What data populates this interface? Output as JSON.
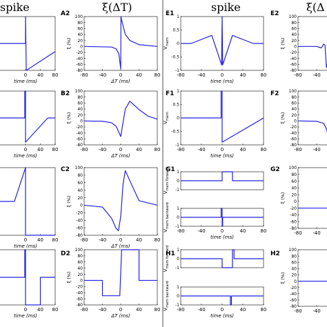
{
  "header": {
    "col1": "spike",
    "col2": "ξ(ΔT)",
    "col3": "spike",
    "col4": "ξ(Δ"
  },
  "time_label": "time (ms)",
  "dt_label": "ΔT (ms)",
  "dt_label_clipped": "Δ",
  "xi_label": "ξ (%)",
  "vmem_label": "V",
  "vmem_sub": "mem",
  "vmem_forward_sub": "mem forward",
  "vmem_backward_sub": "mem backward",
  "series_color": "#2020e0",
  "chart_data": [
    {
      "panel": "A1",
      "type": "line",
      "xlabel": "time (ms)",
      "xlim": [
        -80,
        80
      ],
      "xticks": [
        0,
        40,
        80
      ],
      "x": [
        -80,
        0,
        0,
        2,
        80
      ],
      "y": [
        0,
        0,
        1,
        -1,
        -0.3
      ]
    },
    {
      "panel": "A2",
      "type": "line",
      "title": "ξ(ΔT)",
      "xlabel": "ΔT (ms)",
      "ylabel": "ξ (%)",
      "xlim": [
        -80,
        80
      ],
      "ylim": [
        -80,
        100
      ],
      "xticks": [
        -80,
        -40,
        0,
        40,
        80
      ],
      "yticks": [
        -80,
        -60,
        -40,
        -20,
        0,
        20,
        40,
        60,
        80,
        100
      ],
      "x": [
        -80,
        -20,
        -10,
        -4,
        0,
        0.5,
        2,
        10,
        20,
        40,
        80
      ],
      "y": [
        0,
        -2,
        -8,
        -25,
        -75,
        100,
        88,
        40,
        20,
        6,
        0
      ]
    },
    {
      "panel": "B1",
      "type": "line",
      "xlabel": "time (ms)",
      "xlim": [
        -80,
        80
      ],
      "xticks": [
        0,
        40,
        80
      ],
      "x": [
        -80,
        -2,
        -2,
        0,
        0,
        60,
        80
      ],
      "y": [
        0,
        0,
        1,
        1,
        -0.9,
        0,
        0
      ]
    },
    {
      "panel": "B2",
      "type": "line",
      "xlabel": "ΔT (ms)",
      "ylabel": "ξ (%)",
      "xlim": [
        -80,
        80
      ],
      "ylim": [
        -80,
        100
      ],
      "xticks": [
        -80,
        -40,
        0,
        40,
        80
      ],
      "yticks": [
        -80,
        -60,
        -40,
        -20,
        0,
        20,
        40,
        60,
        80,
        100
      ],
      "x": [
        -80,
        -40,
        -20,
        -10,
        0,
        10,
        20,
        40,
        60,
        80
      ],
      "y": [
        0,
        -1,
        -6,
        -18,
        -52,
        40,
        66,
        38,
        16,
        6
      ]
    },
    {
      "panel": "C1",
      "type": "line",
      "xlabel": "time (ms)",
      "xlim": [
        -80,
        80
      ],
      "xticks": [
        0,
        40,
        80
      ],
      "x": [
        -80,
        -30,
        0,
        0,
        80
      ],
      "y": [
        0,
        0,
        1,
        -1,
        -1
      ]
    },
    {
      "panel": "C2",
      "type": "line",
      "xlabel": "ΔT (ms)",
      "ylabel": "ξ (%)",
      "xlim": [
        -80,
        80
      ],
      "ylim": [
        -80,
        100
      ],
      "xticks": [
        -80,
        -40,
        0,
        40,
        80
      ],
      "yticks": [
        -80,
        -60,
        -40,
        -20,
        0,
        20,
        40,
        60,
        80,
        100
      ],
      "x": [
        -80,
        -40,
        -20,
        -10,
        -5,
        0,
        5,
        10,
        20,
        40,
        80
      ],
      "y": [
        0,
        -5,
        -35,
        -62,
        -68,
        -30,
        55,
        92,
        65,
        12,
        0
      ]
    },
    {
      "panel": "D1",
      "type": "line",
      "xlabel": "time (ms)",
      "xlim": [
        -80,
        80
      ],
      "xticks": [
        0,
        40,
        80
      ],
      "x": [
        -80,
        -2,
        -2,
        0,
        0,
        40,
        40,
        80
      ],
      "y": [
        0,
        0,
        1,
        1,
        -1,
        -1,
        0,
        0
      ]
    },
    {
      "panel": "D2",
      "type": "line",
      "xlabel": "ΔT (ms)",
      "ylabel": "ξ (%)",
      "xlim": [
        -80,
        80
      ],
      "ylim": [
        -80,
        100
      ],
      "xticks": [
        -80,
        -40,
        0,
        40,
        80
      ],
      "yticks": [
        -80,
        -60,
        -40,
        -20,
        0,
        20,
        40,
        60,
        80,
        100
      ],
      "x": [
        -80,
        -40,
        -40,
        -2,
        2,
        40,
        40,
        80
      ],
      "y": [
        0,
        0,
        -50,
        -50,
        100,
        100,
        0,
        0
      ]
    },
    {
      "panel": "E1",
      "type": "line",
      "title": "spike",
      "xlabel": "time (ms)",
      "ylabel": "V_mem",
      "xlim": [
        -80,
        80
      ],
      "ylim": [
        -1,
        1
      ],
      "xticks": [
        -80,
        -40,
        0,
        40,
        80
      ],
      "yticks": [
        -1,
        -0.5,
        0,
        0.5,
        1
      ],
      "x": [
        -80,
        -60,
        -20,
        -1,
        0,
        1,
        20,
        60,
        80
      ],
      "y": [
        0,
        0,
        0.3,
        -0.8,
        1,
        -0.8,
        0.3,
        0,
        0
      ]
    },
    {
      "panel": "E2",
      "type": "line",
      "xlabel": "Δ",
      "ylabel": "ξ (%)",
      "xlim": [
        -80,
        80
      ],
      "ylim": [
        -80,
        100
      ],
      "xticks": [
        -80,
        -40
      ],
      "yticks": [
        -80,
        -60,
        -40,
        -20,
        0,
        20,
        40,
        60,
        80,
        100
      ],
      "x": [
        -80,
        -40,
        -30,
        -25,
        -22,
        -19,
        -15,
        -12
      ],
      "y": [
        0,
        0,
        -5,
        8,
        4,
        -70,
        -45,
        -10
      ]
    },
    {
      "panel": "F1",
      "type": "line",
      "xlabel": "time (ms)",
      "ylabel": "V_mem",
      "xlim": [
        -80,
        80
      ],
      "ylim": [
        -1,
        1
      ],
      "xticks": [
        -80,
        -40,
        0,
        40,
        80
      ],
      "yticks": [
        -1,
        -0.5,
        0,
        0.5,
        1
      ],
      "x": [
        -80,
        -2,
        -2,
        0,
        0,
        80
      ],
      "y": [
        0,
        0,
        1,
        1,
        -0.9,
        0
      ]
    },
    {
      "panel": "F2",
      "type": "line",
      "xlabel": "Δ",
      "ylabel": "ξ (%)",
      "xlim": [
        -80,
        80
      ],
      "ylim": [
        -80,
        100
      ],
      "xticks": [
        -80,
        -40
      ],
      "yticks": [
        -80,
        -60,
        -40,
        -20,
        0,
        20,
        40,
        60,
        80,
        100
      ],
      "x": [
        -80,
        -40,
        -25,
        -18,
        -14,
        -12
      ],
      "y": [
        0,
        -1,
        -8,
        -30,
        -75,
        -40
      ]
    },
    {
      "panel": "G1",
      "type": "line",
      "ylabel": "V_mem forward",
      "xlim": [
        -80,
        80
      ],
      "ylim": [
        -1,
        1
      ],
      "yticks": [
        -1,
        0,
        1
      ],
      "x": [
        -80,
        0,
        0,
        20,
        20,
        80
      ],
      "y": [
        0,
        0,
        1,
        1,
        0,
        0
      ]
    },
    {
      "panel": "G1-backward",
      "type": "line",
      "xlabel": "time (ms)",
      "ylabel": "V_mem backward",
      "xlim": [
        -80,
        80
      ],
      "ylim": [
        -1,
        1
      ],
      "xticks": [
        -80,
        -40,
        0,
        40,
        80
      ],
      "yticks": [
        -1,
        0,
        1
      ],
      "x": [
        -80,
        -2,
        -2,
        0,
        0,
        1,
        1,
        80
      ],
      "y": [
        0,
        0,
        1,
        1,
        -1,
        -1,
        0,
        0
      ]
    },
    {
      "panel": "G2",
      "type": "line",
      "xlabel": "Δ",
      "ylabel": "ξ (%)",
      "xlim": [
        -80,
        80
      ],
      "ylim": [
        -80,
        100
      ],
      "xticks": [
        -80,
        -40
      ],
      "yticks": [
        -80,
        -60,
        -40,
        -20,
        0,
        20,
        40,
        60,
        80,
        100
      ],
      "x": [
        -80,
        -12
      ],
      "y": [
        -20,
        -20
      ]
    },
    {
      "panel": "H1",
      "type": "line",
      "ylabel": "V_mem forward",
      "xlim": [
        -80,
        80
      ],
      "ylim": [
        -1,
        1
      ],
      "yticks": [
        -1,
        0,
        1
      ],
      "x": [
        -80,
        0,
        0,
        20,
        20,
        23,
        23,
        80
      ],
      "y": [
        0,
        0,
        -1,
        -1,
        1,
        1,
        0,
        0
      ]
    },
    {
      "panel": "H1-backward",
      "type": "line",
      "xlabel": "time (ms)",
      "ylabel": "V_mem backward",
      "xlim": [
        -80,
        80
      ],
      "ylim": [
        -1,
        1
      ],
      "xticks": [
        -80,
        -40,
        0,
        40,
        80
      ],
      "yticks": [
        -1,
        0,
        1
      ],
      "x": [
        -80,
        16,
        16,
        18,
        18,
        80
      ],
      "y": [
        0,
        0,
        -1,
        -1,
        0,
        0
      ]
    },
    {
      "panel": "H2",
      "type": "line",
      "xlabel": "Δ",
      "ylabel": "ξ (%)",
      "xlim": [
        -80,
        80
      ],
      "ylim": [
        -80,
        100
      ],
      "xticks": [
        -80,
        -40
      ],
      "yticks": [
        -80,
        -60,
        -40,
        -20,
        0,
        20,
        40,
        60,
        80,
        100
      ],
      "x": [
        -80,
        -12
      ],
      "y": [
        0,
        0
      ]
    }
  ]
}
